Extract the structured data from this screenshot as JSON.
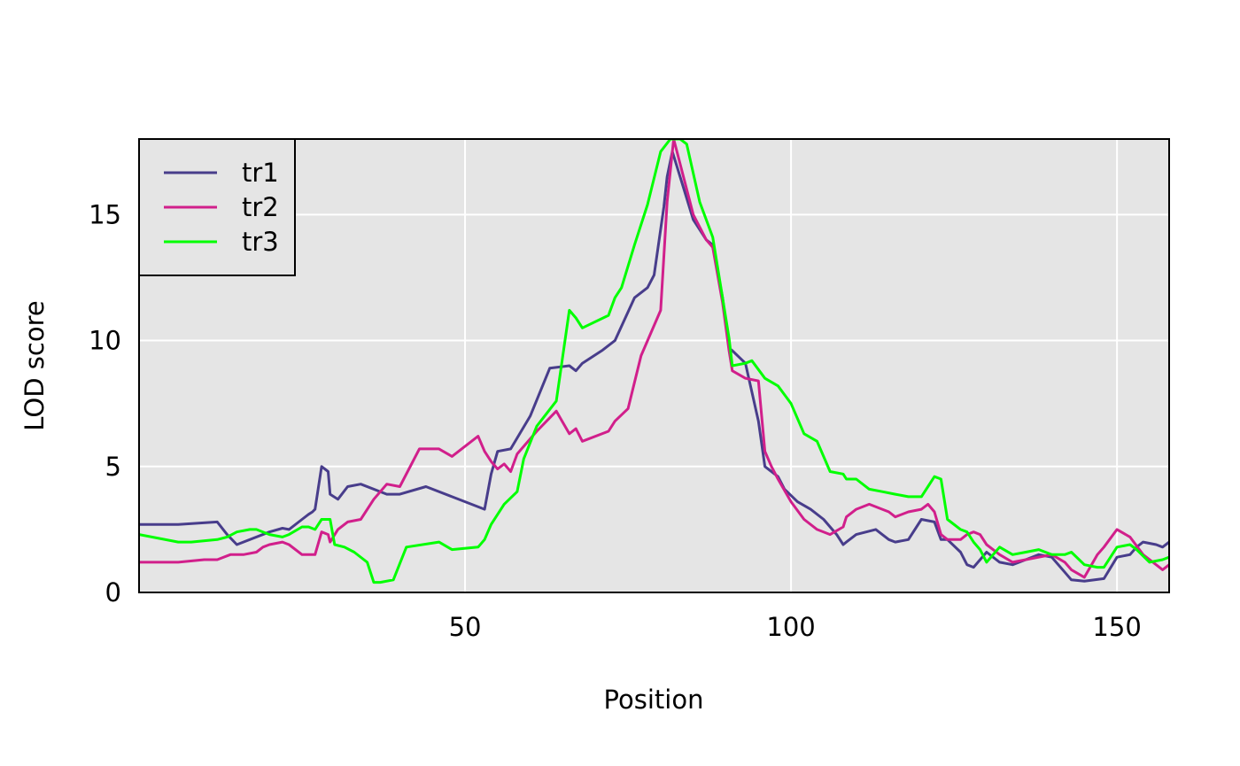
{
  "chart_data": {
    "type": "line",
    "title": "",
    "xlabel": "Position",
    "ylabel": "LOD score",
    "xlim": [
      0,
      158
    ],
    "ylim": [
      0,
      18
    ],
    "xticks": [
      50,
      100,
      150
    ],
    "yticks": [
      0,
      5,
      10,
      15
    ],
    "grid": true,
    "legend_position": "top-left",
    "background": "#e5e5e5",
    "series": [
      {
        "name": "tr1",
        "color": "#483d8b",
        "x": [
          0,
          6,
          12,
          13.5,
          15,
          20,
          22,
          23,
          25,
          26,
          26.6,
          27,
          28,
          29,
          29.3,
          30.5,
          32,
          34,
          38,
          40,
          44,
          48,
          53,
          54,
          55,
          57,
          60,
          63,
          66,
          67,
          68,
          71,
          72,
          73,
          76,
          78,
          79,
          80.5,
          81,
          81.8,
          83,
          85,
          87,
          88,
          89.5,
          90.5,
          91,
          93,
          95,
          96,
          97,
          98,
          99,
          101,
          103,
          105,
          107,
          108,
          108.5,
          110,
          113,
          115,
          116,
          118,
          120,
          122,
          123,
          124,
          126,
          127,
          128,
          130,
          132,
          134,
          136,
          138,
          140,
          142,
          143,
          145,
          148,
          150,
          152,
          153,
          154,
          156,
          157,
          158
        ],
        "y": [
          2.7,
          2.7,
          2.8,
          2.3,
          1.9,
          2.4,
          2.55,
          2.5,
          2.9,
          3.1,
          3.2,
          3.3,
          5.0,
          4.8,
          3.9,
          3.7,
          4.2,
          4.3,
          3.9,
          3.9,
          4.2,
          3.8,
          3.3,
          4.7,
          5.6,
          5.7,
          7.0,
          8.9,
          9.0,
          8.8,
          9.1,
          9.6,
          9.8,
          10.0,
          11.7,
          12.1,
          12.6,
          15.3,
          16.5,
          17.5,
          16.5,
          14.8,
          14.0,
          13.8,
          11.7,
          9.7,
          9.6,
          9.1,
          6.8,
          5.0,
          4.8,
          4.6,
          4.1,
          3.6,
          3.3,
          2.9,
          2.3,
          1.9,
          2.0,
          2.3,
          2.5,
          2.1,
          2.0,
          2.1,
          2.9,
          2.8,
          2.1,
          2.1,
          1.6,
          1.1,
          1.0,
          1.6,
          1.2,
          1.1,
          1.3,
          1.5,
          1.4,
          0.8,
          0.5,
          0.45,
          0.55,
          1.4,
          1.5,
          1.8,
          2.0,
          1.9,
          1.8,
          2.0
        ]
      },
      {
        "name": "tr2",
        "color": "#d11f8b",
        "x": [
          0,
          6,
          10,
          12,
          14,
          16,
          18,
          19,
          20,
          22,
          23,
          25,
          26,
          26.6,
          27,
          28,
          29,
          29.3,
          30.5,
          32,
          34,
          36,
          38,
          40,
          43,
          46,
          48,
          52,
          53,
          54,
          55,
          56,
          57,
          58,
          61,
          64,
          66,
          67,
          68,
          72,
          73,
          75,
          77,
          80,
          81,
          82,
          85,
          87,
          88,
          89.5,
          90.5,
          91,
          93,
          95,
          96,
          97,
          98,
          100,
          102,
          104,
          106,
          108,
          108.5,
          110,
          112,
          114,
          115,
          116,
          118,
          120,
          121,
          122,
          123,
          124,
          126,
          127,
          128,
          129,
          130,
          132,
          134,
          136,
          138,
          140,
          142,
          143,
          145,
          147,
          148,
          150,
          152,
          154,
          156,
          157,
          158
        ],
        "y": [
          1.2,
          1.2,
          1.3,
          1.3,
          1.5,
          1.5,
          1.6,
          1.8,
          1.9,
          2.0,
          1.9,
          1.5,
          1.5,
          1.5,
          1.5,
          2.4,
          2.3,
          2.0,
          2.5,
          2.8,
          2.9,
          3.7,
          4.3,
          4.2,
          5.7,
          5.7,
          5.4,
          6.2,
          5.6,
          5.2,
          4.9,
          5.1,
          4.8,
          5.5,
          6.4,
          7.2,
          6.3,
          6.5,
          6.0,
          6.4,
          6.8,
          7.3,
          9.4,
          11.2,
          15.5,
          18.0,
          15.0,
          14.0,
          13.7,
          11.5,
          9.6,
          8.8,
          8.5,
          8.4,
          5.6,
          5.0,
          4.5,
          3.6,
          2.9,
          2.5,
          2.3,
          2.6,
          3.0,
          3.3,
          3.5,
          3.3,
          3.2,
          3.0,
          3.2,
          3.3,
          3.5,
          3.2,
          2.3,
          2.1,
          2.1,
          2.3,
          2.4,
          2.3,
          1.9,
          1.5,
          1.2,
          1.3,
          1.4,
          1.5,
          1.2,
          0.9,
          0.6,
          1.5,
          1.8,
          2.5,
          2.2,
          1.5,
          1.1,
          0.9,
          1.1
        ]
      },
      {
        "name": "tr3",
        "color": "#00ff00",
        "x": [
          0,
          6,
          8,
          12,
          13.5,
          15,
          17,
          18,
          20,
          22,
          23,
          25,
          26,
          27,
          28,
          29.3,
          30,
          31.5,
          33,
          35,
          36,
          37,
          39,
          41,
          46,
          48,
          52,
          53,
          54,
          56,
          58,
          59,
          61,
          64,
          66,
          67,
          68,
          72,
          73,
          74,
          76,
          78,
          80,
          81.5,
          82.5,
          83,
          84,
          86,
          88,
          89.5,
          90.5,
          91,
          93,
          94,
          96,
          98,
          100,
          102,
          104,
          106,
          108,
          108.5,
          110,
          112,
          114,
          116,
          118,
          120,
          121,
          122,
          123,
          124,
          126,
          127,
          128,
          129,
          130,
          132,
          134,
          136,
          138,
          140,
          142,
          143,
          145,
          147,
          148,
          150,
          152,
          153,
          155,
          157,
          158
        ],
        "y": [
          2.3,
          2.0,
          2.0,
          2.1,
          2.2,
          2.4,
          2.5,
          2.5,
          2.3,
          2.2,
          2.3,
          2.6,
          2.6,
          2.5,
          2.9,
          2.9,
          1.9,
          1.8,
          1.6,
          1.2,
          0.4,
          0.4,
          0.5,
          1.8,
          2.0,
          1.7,
          1.8,
          2.1,
          2.7,
          3.5,
          4.0,
          5.3,
          6.6,
          7.6,
          11.2,
          10.9,
          10.5,
          11.0,
          11.7,
          12.1,
          13.8,
          15.4,
          17.5,
          18.0,
          18.0,
          18.0,
          17.8,
          15.5,
          14.1,
          11.7,
          10.1,
          9.0,
          9.1,
          9.2,
          8.5,
          8.2,
          7.5,
          6.3,
          6.0,
          4.8,
          4.7,
          4.5,
          4.5,
          4.1,
          4.0,
          3.9,
          3.8,
          3.8,
          4.2,
          4.6,
          4.5,
          2.9,
          2.5,
          2.4,
          2.0,
          1.7,
          1.2,
          1.8,
          1.5,
          1.6,
          1.7,
          1.5,
          1.5,
          1.6,
          1.1,
          1.0,
          1.0,
          1.8,
          1.9,
          1.7,
          1.2,
          1.3,
          1.4
        ]
      }
    ]
  }
}
